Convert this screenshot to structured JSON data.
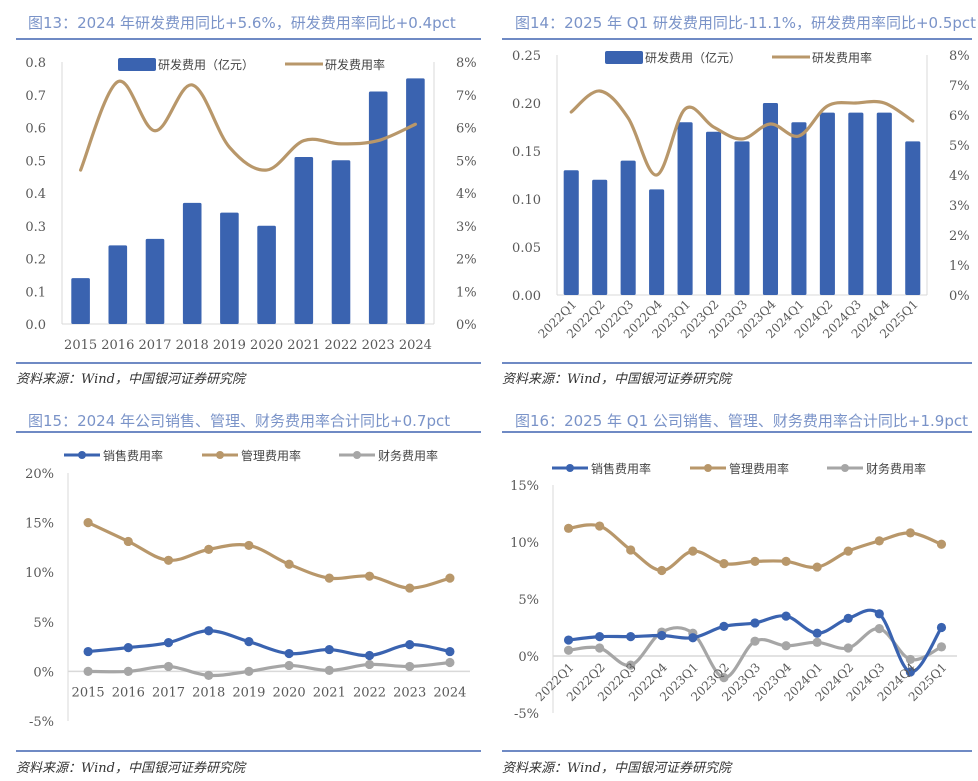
{
  "colors": {
    "bar": "#3a63b0",
    "rd_line": "#b8976a",
    "sales": "#3a63b0",
    "admin": "#b8976a",
    "finance": "#a6a6a6",
    "title": "#7a93c8",
    "rule": "#6f8ac4"
  },
  "source_text": "资料来源：Wind，中国银河证券研究院",
  "chart_data": [
    {
      "id": "fig13",
      "type": "bar",
      "title": "图13：2024 年研发费用同比+5.6%，研发费用率同比+0.4pct",
      "categories": [
        "2015",
        "2016",
        "2017",
        "2018",
        "2019",
        "2020",
        "2021",
        "2022",
        "2023",
        "2024"
      ],
      "series": [
        {
          "name": "研发费用（亿元）",
          "type": "bar",
          "axis": "left",
          "values": [
            0.14,
            0.24,
            0.26,
            0.37,
            0.34,
            0.3,
            0.51,
            0.5,
            0.71,
            0.75
          ]
        },
        {
          "name": "研发费用率",
          "type": "line",
          "axis": "right",
          "values": [
            4.7,
            7.4,
            5.9,
            7.3,
            5.4,
            4.7,
            5.6,
            5.5,
            5.6,
            6.1
          ]
        }
      ],
      "ylim": [
        0,
        0.8
      ],
      "yticks": [
        "0.0",
        "0.1",
        "0.2",
        "0.3",
        "0.4",
        "0.5",
        "0.6",
        "0.7",
        "0.8"
      ],
      "y2lim": [
        0,
        8
      ],
      "y2ticks": [
        "0%",
        "1%",
        "2%",
        "3%",
        "4%",
        "5%",
        "6%",
        "7%",
        "8%"
      ],
      "legend": "top",
      "source": "资料来源：Wind，中国银河证券研究院"
    },
    {
      "id": "fig14",
      "type": "bar",
      "title": "图14：2025 年 Q1 研发费用同比-11.1%，研发费用率同比+0.5pct",
      "categories": [
        "2022Q1",
        "2022Q2",
        "2022Q3",
        "2022Q4",
        "2023Q1",
        "2023Q2",
        "2023Q3",
        "2023Q4",
        "2024Q1",
        "2024Q2",
        "2024Q3",
        "2024Q4",
        "2025Q1"
      ],
      "series": [
        {
          "name": "研发费用（亿元）",
          "type": "bar",
          "axis": "left",
          "values": [
            0.13,
            0.12,
            0.14,
            0.11,
            0.18,
            0.17,
            0.16,
            0.2,
            0.18,
            0.19,
            0.19,
            0.19,
            0.16
          ]
        },
        {
          "name": "研发费用率",
          "type": "line",
          "axis": "right",
          "values": [
            6.1,
            6.8,
            5.9,
            4.0,
            6.2,
            5.6,
            5.2,
            5.7,
            5.3,
            6.3,
            6.4,
            6.4,
            5.8
          ]
        }
      ],
      "ylim": [
        0,
        0.25
      ],
      "yticks": [
        "0.00",
        "0.05",
        "0.10",
        "0.15",
        "0.20",
        "0.25"
      ],
      "y2lim": [
        0,
        8
      ],
      "y2ticks": [
        "0%",
        "1%",
        "2%",
        "3%",
        "4%",
        "5%",
        "6%",
        "7%",
        "8%"
      ],
      "legend": "top",
      "source": "资料来源：Wind，中国银河证券研究院"
    },
    {
      "id": "fig15",
      "type": "line",
      "title": "图15：2024 年公司销售、管理、财务费用率合计同比+0.7pct",
      "categories": [
        "2015",
        "2016",
        "2017",
        "2018",
        "2019",
        "2020",
        "2021",
        "2022",
        "2023",
        "2024"
      ],
      "series": [
        {
          "name": "销售费用率",
          "values": [
            2.0,
            2.4,
            2.9,
            4.1,
            3.0,
            1.8,
            2.2,
            1.6,
            2.7,
            2.0
          ]
        },
        {
          "name": "管理费用率",
          "values": [
            15.0,
            13.1,
            11.2,
            12.3,
            12.7,
            10.8,
            9.4,
            9.6,
            8.4,
            9.4
          ]
        },
        {
          "name": "财务费用率",
          "values": [
            0.0,
            0.0,
            0.5,
            -0.4,
            0.0,
            0.6,
            0.1,
            0.7,
            0.5,
            0.9
          ]
        }
      ],
      "ylim": [
        -5,
        20
      ],
      "yticks": [
        "-5%",
        "0%",
        "5%",
        "10%",
        "15%",
        "20%"
      ],
      "legend": "top",
      "source": "资料来源：Wind，中国银河证券研究院"
    },
    {
      "id": "fig16",
      "type": "line",
      "title": "图16：2025 年 Q1 公司销售、管理、财务费用率合计同比+1.9pct",
      "categories": [
        "2022Q1",
        "2022Q2",
        "2022Q3",
        "2022Q4",
        "2023Q1",
        "2023Q2",
        "2023Q3",
        "2023Q4",
        "2024Q1",
        "2024Q2",
        "2024Q3",
        "2024Q4",
        "2025Q1"
      ],
      "series": [
        {
          "name": "销售费用率",
          "values": [
            1.4,
            1.7,
            1.7,
            1.8,
            1.6,
            2.6,
            2.9,
            3.5,
            2.0,
            3.3,
            3.7,
            -1.4,
            2.5
          ]
        },
        {
          "name": "管理费用率",
          "values": [
            11.2,
            11.4,
            9.3,
            7.5,
            9.2,
            8.1,
            8.3,
            8.3,
            7.8,
            9.2,
            10.1,
            10.8,
            9.8
          ]
        },
        {
          "name": "财务费用率",
          "values": [
            0.5,
            0.7,
            -0.8,
            2.1,
            2.0,
            -1.9,
            1.3,
            0.9,
            1.2,
            0.7,
            2.4,
            -0.3,
            0.8
          ]
        }
      ],
      "ylim": [
        -5,
        15
      ],
      "yticks": [
        "-5%",
        "0%",
        "5%",
        "10%",
        "15%"
      ],
      "legend": "top",
      "source": "资料来源：Wind，中国银河证券研究院"
    }
  ]
}
